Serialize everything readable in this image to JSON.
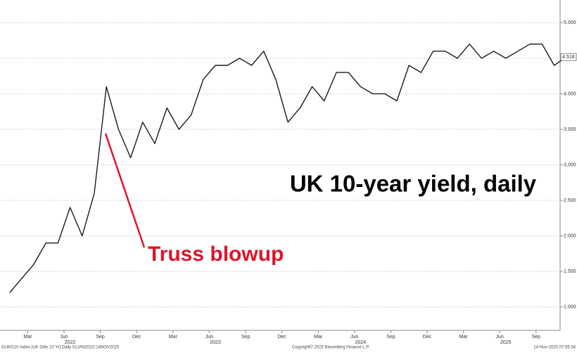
{
  "chart_data": {
    "type": "line",
    "title": "UK 10-year yield, daily",
    "annotation": "Truss blowup",
    "last_value_label": "4.518",
    "footer_left": "GUKG10 Index (UK Gilts 10 Yr) Daily 01JAN2022-14NOV2025",
    "footer_center": "Copyright© 2025 Bloomberg Finance L.P.",
    "footer_right": "14-Nov-2025 07:55:34",
    "x": [
      "2022-01",
      "2022-02",
      "2022-03",
      "2022-04",
      "2022-05",
      "2022-06",
      "2022-07",
      "2022-08",
      "2022-09",
      "2022-10",
      "2022-11",
      "2022-12",
      "2023-01",
      "2023-02",
      "2023-03",
      "2023-04",
      "2023-05",
      "2023-06",
      "2023-07",
      "2023-08",
      "2023-09",
      "2023-10",
      "2023-11",
      "2023-12",
      "2024-01",
      "2024-02",
      "2024-03",
      "2024-04",
      "2024-05",
      "2024-06",
      "2024-07",
      "2024-08",
      "2024-09",
      "2024-10",
      "2024-11",
      "2024-12",
      "2025-01",
      "2025-02",
      "2025-03",
      "2025-04",
      "2025-05",
      "2025-06",
      "2025-07",
      "2025-08",
      "2025-09",
      "2025-10",
      "2025-11"
    ],
    "series": [
      {
        "name": "GUKG10 Index",
        "color": "#1a1a1a",
        "values": [
          1.2,
          1.4,
          1.6,
          1.9,
          1.9,
          2.4,
          2.0,
          2.6,
          4.1,
          3.5,
          3.1,
          3.6,
          3.3,
          3.8,
          3.5,
          3.7,
          4.2,
          4.4,
          4.4,
          4.5,
          4.4,
          4.6,
          4.2,
          3.6,
          3.8,
          4.1,
          3.9,
          4.3,
          4.3,
          4.1,
          4.0,
          4.0,
          3.9,
          4.4,
          4.3,
          4.6,
          4.6,
          4.5,
          4.7,
          4.5,
          4.6,
          4.5,
          4.6,
          4.7,
          4.7,
          4.4,
          4.518
        ]
      }
    ],
    "ylim": [
      0.67,
      5.32
    ],
    "yticks": [
      {
        "value": 1,
        "label": "1.000"
      },
      {
        "value": 1.5,
        "label": "1.500"
      },
      {
        "value": 2,
        "label": "2.000"
      },
      {
        "value": 2.5,
        "label": "2.500"
      },
      {
        "value": 3,
        "label": "3.000"
      },
      {
        "value": 3.5,
        "label": "3.500"
      },
      {
        "value": 4,
        "label": "4.000"
      },
      {
        "value": 4.5,
        "label": "4.500"
      },
      {
        "value": 5,
        "label": "5.000"
      }
    ],
    "xticks": [
      {
        "value": "2022-03",
        "label": "Mar"
      },
      {
        "value": "2022-06",
        "label": "Jun"
      },
      {
        "value": "2022-09",
        "label": "Sep"
      },
      {
        "value": "2022-12",
        "label": "Dec"
      },
      {
        "value": "2023-03",
        "label": "Mar"
      },
      {
        "value": "2023-06",
        "label": "Jun"
      },
      {
        "value": "2023-09",
        "label": "Sep"
      },
      {
        "value": "2023-12",
        "label": "Dec"
      },
      {
        "value": "2024-03",
        "label": "Mar"
      },
      {
        "value": "2024-06",
        "label": "Jun"
      },
      {
        "value": "2024-09",
        "label": "Sep"
      },
      {
        "value": "2024-12",
        "label": "Dec"
      },
      {
        "value": "2025-03",
        "label": "Mar"
      },
      {
        "value": "2025-06",
        "label": "Jun"
      },
      {
        "value": "2025-09",
        "label": "Sep"
      }
    ],
    "year_labels": [
      {
        "value": "2022-06",
        "label": "2022"
      },
      {
        "value": "2023-06",
        "label": "2023"
      },
      {
        "value": "2024-06",
        "label": "2024"
      },
      {
        "value": "2025-06",
        "label": "2025"
      }
    ],
    "grid": true
  }
}
